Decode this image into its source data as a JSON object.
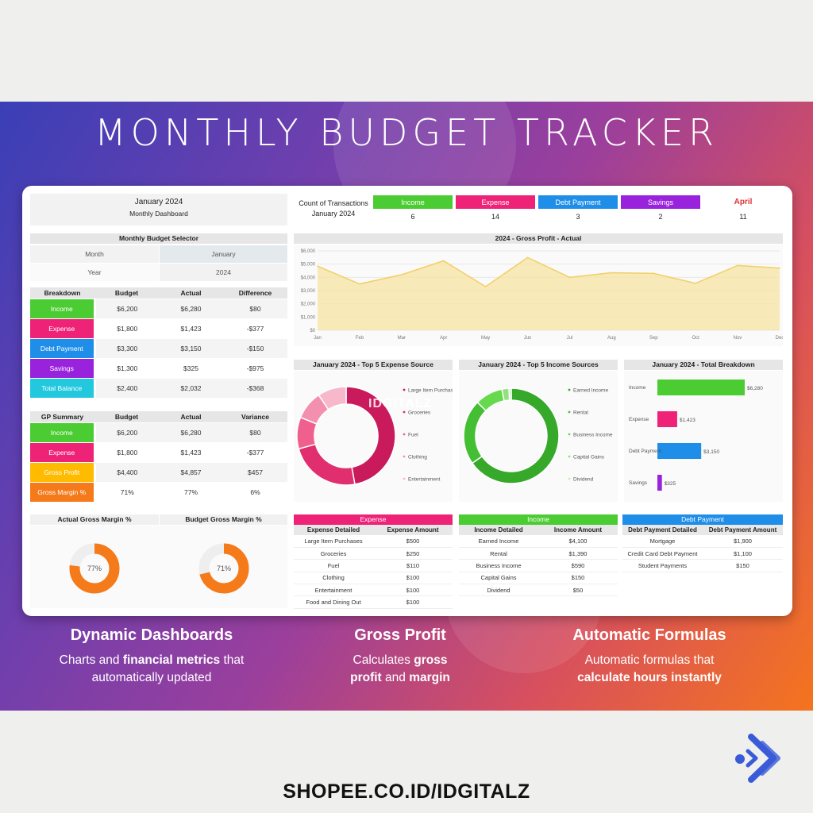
{
  "header": {
    "title": "MONTHLY BUDGET TRACKER"
  },
  "dash": {
    "month_title": "January 2024",
    "subtitle": "Monthly Dashboard",
    "count_label": "Count of Transactions",
    "count_month": "January 2024",
    "counts": [
      {
        "label": "Income",
        "value": "6",
        "color": "#4ccc33"
      },
      {
        "label": "Expense",
        "value": "14",
        "color": "#ee2277"
      },
      {
        "label": "Debt Payment",
        "value": "3",
        "color": "#1f8ee8"
      },
      {
        "label": "Savings",
        "value": "2",
        "color": "#9922dd"
      }
    ],
    "april": {
      "label": "April",
      "value": "11"
    },
    "selector": {
      "title": "Monthly Budget Selector",
      "month_label": "Month",
      "month_value": "January",
      "year_label": "Year",
      "year_value": "2024"
    },
    "breakdown": {
      "headers": [
        "Breakdown",
        "Budget",
        "Actual",
        "Difference"
      ],
      "rows": [
        {
          "label": "Income",
          "budget": "$6,200",
          "actual": "$6,280",
          "diff": "$80",
          "color": "#4ccc33"
        },
        {
          "label": "Expense",
          "budget": "$1,800",
          "actual": "$1,423",
          "diff": "-$377",
          "color": "#ee2277"
        },
        {
          "label": "Debt Payment",
          "budget": "$3,300",
          "actual": "$3,150",
          "diff": "-$150",
          "color": "#1f8ee8"
        },
        {
          "label": "Savings",
          "budget": "$1,300",
          "actual": "$325",
          "diff": "-$975",
          "color": "#9922dd"
        },
        {
          "label": "Total Balance",
          "budget": "$2,400",
          "actual": "$2,032",
          "diff": "-$368",
          "color": "#22c8dd"
        }
      ]
    },
    "gp": {
      "headers": [
        "GP Summary",
        "Budget",
        "Actual",
        "Variance"
      ],
      "rows": [
        {
          "label": "Income",
          "budget": "$6,200",
          "actual": "$6,280",
          "diff": "$80",
          "color": "#4ccc33"
        },
        {
          "label": "Expense",
          "budget": "$1,800",
          "actual": "$1,423",
          "diff": "-$377",
          "color": "#ee2277"
        },
        {
          "label": "Gross Profit",
          "budget": "$4,400",
          "actual": "$4,857",
          "diff": "$457",
          "color": "#ffbb00"
        },
        {
          "label": "Gross Margin %",
          "budget": "71%",
          "actual": "77%",
          "diff": "6%",
          "color": "#f57a1a"
        }
      ]
    },
    "gauges": {
      "actual_title": "Actual  Gross Margin %",
      "actual_value": "77%",
      "actual_pct": 77,
      "budget_title": "Budget  Gross Margin %",
      "budget_value": "71%",
      "budget_pct": 71
    },
    "expense_table": {
      "band": "Expense",
      "headers": [
        "Expense Detailed",
        "Expense Amount"
      ],
      "rows": [
        [
          "Large Item Purchases",
          "$500"
        ],
        [
          "Groceries",
          "$250"
        ],
        [
          "Fuel",
          "$110"
        ],
        [
          "Clothing",
          "$100"
        ],
        [
          "Entertainment",
          "$100"
        ],
        [
          "Food and Dining Out",
          "$100"
        ]
      ]
    },
    "income_table": {
      "band": "Income",
      "headers": [
        "Income Detailed",
        "Income Amount"
      ],
      "rows": [
        [
          "Earned Income",
          "$4,100"
        ],
        [
          "Rental",
          "$1,390"
        ],
        [
          "Business Income",
          "$590"
        ],
        [
          "Capital Gains",
          "$150"
        ],
        [
          "Dividend",
          "$50"
        ]
      ]
    },
    "debt_table": {
      "band": "Debt Payment",
      "headers": [
        "Debt Payment Detailed",
        "Debt Payment Amount"
      ],
      "rows": [
        [
          "Mortgage",
          "$1,900"
        ],
        [
          "Credit Card Debt Payment",
          "$1,100"
        ],
        [
          "Student Payments",
          "$150"
        ]
      ]
    },
    "watermark": "IDGITALZ"
  },
  "chart_data": [
    {
      "type": "area",
      "title": "2024 - Gross Profit - Actual",
      "x": [
        "Jan",
        "Feb",
        "Mar",
        "Apr",
        "May",
        "Jun",
        "Jul",
        "Aug",
        "Sep",
        "Oct",
        "Nov",
        "Dec"
      ],
      "y_ticks": [
        "$0",
        "$1,000",
        "$2,000",
        "$3,000",
        "$4,000",
        "$5,000",
        "$6,000"
      ],
      "ylim": [
        0,
        6000
      ],
      "values": [
        4850,
        3500,
        4200,
        5250,
        3300,
        5500,
        4000,
        4350,
        4300,
        3550,
        4900,
        4700
      ],
      "color": "#f7e3a3"
    },
    {
      "type": "pie",
      "title": "January 2024 - Top 5 Expense Source",
      "labels": [
        "Large Item Purchases",
        "Groceries",
        "Fuel",
        "Clothing",
        "Entertainment"
      ],
      "values": [
        500,
        250,
        110,
        100,
        100
      ],
      "colors": [
        "#c91a5b",
        "#e02e6e",
        "#f0608e",
        "#f38faf",
        "#f8b8cc"
      ]
    },
    {
      "type": "pie",
      "title": "January 2024 - Top 5 Income Sources",
      "labels": [
        "Earned Income",
        "Rental",
        "Business Income",
        "Capital Gains",
        "Dividend"
      ],
      "values": [
        4100,
        1390,
        590,
        150,
        50
      ],
      "colors": [
        "#36a82a",
        "#44bf33",
        "#66d94f",
        "#8fe27d",
        "#c0efb3"
      ]
    },
    {
      "type": "bar",
      "title": "January 2024 - Total Breakdown",
      "categories": [
        "Income",
        "Expense",
        "Debt Payment",
        "Savings"
      ],
      "values": [
        6280,
        1423,
        3150,
        325
      ],
      "data_labels": [
        "$6,280",
        "$1,423",
        "$3,150",
        "$325"
      ],
      "colors": [
        "#4ccc33",
        "#ee2277",
        "#1f8ee8",
        "#9922dd"
      ]
    }
  ],
  "features": [
    {
      "title": "Dynamic Dashboards",
      "line1a": "Charts and ",
      "line1b": "financial metrics",
      "line1c": " that",
      "line2": "automatically updated"
    },
    {
      "title": "Gross Profit",
      "line1a": "Calculates ",
      "line1b": "gross",
      "line2a": "profit",
      "line2b": " and ",
      "line2c": "margin"
    },
    {
      "title": "Automatic Formulas",
      "line1": "Automatic formulas that",
      "line2": "calculate hours instantly"
    }
  ],
  "footer": {
    "url": "SHOPEE.CO.ID/IDGITALZ"
  }
}
